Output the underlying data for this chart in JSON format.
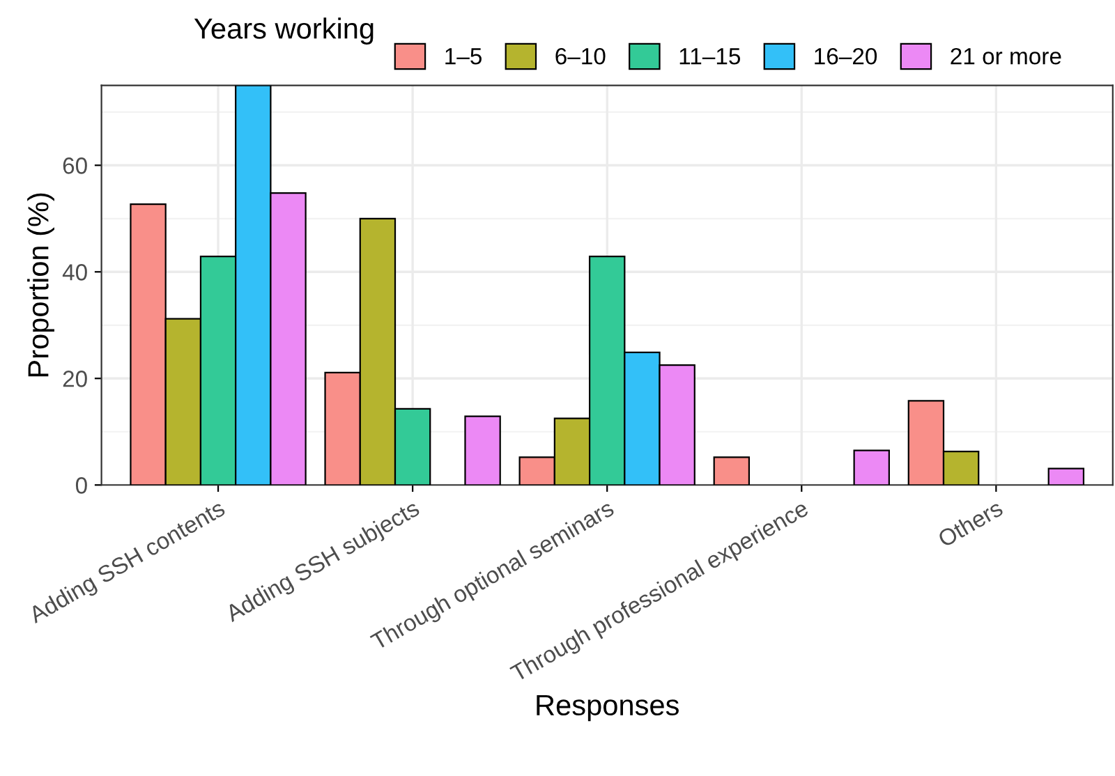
{
  "chart_data": {
    "type": "bar",
    "xlabel": "Responses",
    "ylabel": "Proportion (%)",
    "legend_title": "Years working",
    "legend": "top",
    "categories": [
      "Adding SSH contents",
      "Adding SSH subjects",
      "Through optional seminars",
      "Through professional experience",
      "Others"
    ],
    "series": [
      {
        "name": "1–5",
        "color": "#f98f89",
        "values": [
          52.7,
          21.1,
          5.2,
          5.2,
          15.8
        ]
      },
      {
        "name": "6–10",
        "color": "#b5b42e",
        "values": [
          31.2,
          50.0,
          12.5,
          null,
          6.3
        ]
      },
      {
        "name": "11–15",
        "color": "#33ca97",
        "values": [
          42.9,
          14.3,
          42.9,
          null,
          null
        ]
      },
      {
        "name": "16–20",
        "color": "#33c0f8",
        "values": [
          75,
          null,
          24.9,
          null,
          null
        ]
      },
      {
        "name": "21 or more",
        "color": "#ec89f5",
        "values": [
          54.8,
          12.9,
          22.5,
          6.5,
          3.1
        ]
      }
    ],
    "ylim": [
      0,
      75
    ],
    "yticks": [
      0,
      20,
      40,
      60
    ],
    "grid": true
  }
}
